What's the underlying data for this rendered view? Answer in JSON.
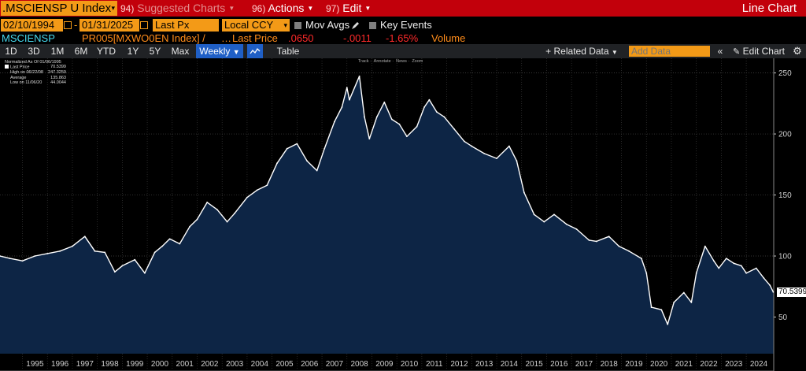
{
  "header": {
    "ticker": ".MSCIENSP U Index",
    "suggested": {
      "num": "94)",
      "label": "Suggested Charts"
    },
    "actions": {
      "num": "96)",
      "label": "Actions"
    },
    "edit": {
      "num": "97)",
      "label": "Edit"
    },
    "chart_type": "Line Chart"
  },
  "controls": {
    "start_date": "02/10/1994",
    "date_separator": "-",
    "end_date": "01/31/2025",
    "field": "Last Px",
    "currency": "Local CCY",
    "mov_avgs": "Mov Avgs",
    "key_events": "Key Events"
  },
  "legend": {
    "security": "MSCIENSP",
    "comparison": "PR005[MXWO0EN Index] /",
    "ellipsis": "…",
    "last_price_label": "Last Price",
    "last_price": ".0650",
    "change": "-.0011",
    "change_pct": "-1.65%",
    "volume": "Volume"
  },
  "toolbar": {
    "periods": [
      "1D",
      "3D",
      "1M",
      "6M",
      "YTD",
      "1Y",
      "5Y",
      "Max"
    ],
    "frequency": "Weekly",
    "table": "Table",
    "related_data": "+ Related Data",
    "add_data_placeholder": "Add Data",
    "edit_chart": "Edit Chart"
  },
  "mini_legend": {
    "heading": "Normalized As Of 01/06/1995",
    "last_price": {
      "label": "Last Price",
      "value": "70.5399"
    },
    "high": {
      "label": "High on 06/22/08",
      "value": "247.3259"
    },
    "average": {
      "label": "Average",
      "value": "135.863"
    },
    "low": {
      "label": "Low on 11/06/20",
      "value": "44.0044"
    }
  },
  "chart_tools": [
    "Track",
    "Annotate",
    "News",
    "Zoom"
  ],
  "colors": {
    "accent": "#f39a17",
    "titlebar": "#c2000b",
    "area_fill": "#0d2545",
    "line": "#ffffff",
    "negative": "#ff2a2a",
    "positive_label": "#ff8c1a"
  },
  "chart_data": {
    "type": "area",
    "title": "",
    "xlabel": "",
    "ylabel": "",
    "frequency": "weekly",
    "x_ticks": [
      "1995",
      "1996",
      "1997",
      "1998",
      "1999",
      "2000",
      "2001",
      "2002",
      "2003",
      "2004",
      "2005",
      "2006",
      "2007",
      "2008",
      "2009",
      "2010",
      "2011",
      "2012",
      "2013",
      "2014",
      "2015",
      "2016",
      "2017",
      "2018",
      "2019",
      "2020",
      "2021",
      "2022",
      "2023",
      "2024"
    ],
    "y_ticks": [
      50,
      100,
      150,
      200,
      250
    ],
    "ylim": [
      20,
      262
    ],
    "xlim": [
      1994.1,
      2025.1
    ],
    "last_value": "70.5399",
    "series": [
      {
        "values": [
          [
            1994.1,
            100
          ],
          [
            1994.5,
            98
          ],
          [
            1995.0,
            96
          ],
          [
            1995.5,
            100
          ],
          [
            1996.0,
            102
          ],
          [
            1996.5,
            104
          ],
          [
            1997.0,
            108
          ],
          [
            1997.5,
            116
          ],
          [
            1997.9,
            104
          ],
          [
            1998.3,
            103
          ],
          [
            1998.7,
            87
          ],
          [
            1999.0,
            92
          ],
          [
            1999.5,
            97
          ],
          [
            1999.9,
            86
          ],
          [
            2000.3,
            103
          ],
          [
            2000.6,
            108
          ],
          [
            2000.9,
            114
          ],
          [
            2001.3,
            110
          ],
          [
            2001.7,
            124
          ],
          [
            2002.0,
            130
          ],
          [
            2002.4,
            144
          ],
          [
            2002.8,
            138
          ],
          [
            2003.2,
            128
          ],
          [
            2003.5,
            135
          ],
          [
            2004.0,
            148
          ],
          [
            2004.4,
            154
          ],
          [
            2004.8,
            158
          ],
          [
            2005.2,
            176
          ],
          [
            2005.6,
            188
          ],
          [
            2006.0,
            192
          ],
          [
            2006.4,
            178
          ],
          [
            2006.8,
            170
          ],
          [
            2007.1,
            188
          ],
          [
            2007.5,
            210
          ],
          [
            2007.8,
            222
          ],
          [
            2008.0,
            238
          ],
          [
            2008.1,
            228
          ],
          [
            2008.5,
            247.3
          ],
          [
            2008.7,
            214
          ],
          [
            2008.9,
            196
          ],
          [
            2009.2,
            214
          ],
          [
            2009.5,
            226
          ],
          [
            2009.8,
            212
          ],
          [
            2010.1,
            208
          ],
          [
            2010.4,
            198
          ],
          [
            2010.8,
            206
          ],
          [
            2011.1,
            222
          ],
          [
            2011.3,
            228
          ],
          [
            2011.6,
            218
          ],
          [
            2011.9,
            214
          ],
          [
            2012.3,
            204
          ],
          [
            2012.7,
            194
          ],
          [
            2013.0,
            190
          ],
          [
            2013.5,
            184
          ],
          [
            2014.0,
            180
          ],
          [
            2014.5,
            190
          ],
          [
            2014.8,
            178
          ],
          [
            2015.1,
            152
          ],
          [
            2015.5,
            134
          ],
          [
            2015.9,
            128
          ],
          [
            2016.3,
            134
          ],
          [
            2016.8,
            126
          ],
          [
            2017.2,
            122
          ],
          [
            2017.7,
            113
          ],
          [
            2018.0,
            112
          ],
          [
            2018.5,
            116
          ],
          [
            2018.9,
            108
          ],
          [
            2019.3,
            104
          ],
          [
            2019.8,
            98
          ],
          [
            2020.0,
            86
          ],
          [
            2020.2,
            58
          ],
          [
            2020.6,
            56
          ],
          [
            2020.85,
            44.0
          ],
          [
            2021.1,
            62
          ],
          [
            2021.5,
            70
          ],
          [
            2021.8,
            62
          ],
          [
            2022.0,
            86
          ],
          [
            2022.35,
            108
          ],
          [
            2022.7,
            96
          ],
          [
            2022.9,
            90
          ],
          [
            2023.2,
            98
          ],
          [
            2023.5,
            94
          ],
          [
            2023.8,
            92
          ],
          [
            2024.0,
            86
          ],
          [
            2024.4,
            90
          ],
          [
            2024.7,
            82
          ],
          [
            2024.95,
            76
          ],
          [
            2025.08,
            70.5
          ]
        ]
      }
    ]
  }
}
